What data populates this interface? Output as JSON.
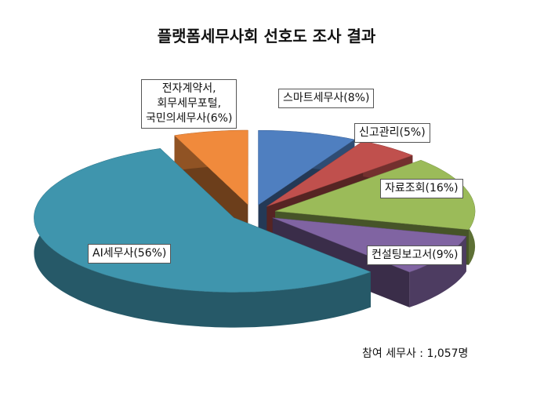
{
  "chart_data": {
    "type": "pie3d",
    "title": "플랫폼세무사회 선호도 조사 결과",
    "categories": [
      "스마트세무사(8%)",
      "신고관리(5%)",
      "자료조회(16%)",
      "컨설팅보고서(9%)",
      "AI세무사(56%)",
      "전자계약서,\n회무세무포털,\n국민의세무사(6%)"
    ],
    "values": [
      8,
      5,
      16,
      9,
      56,
      6
    ],
    "colors": [
      "#4f7fc0",
      "#c0504d",
      "#9bbb59",
      "#8064a2",
      "#3f95ad",
      "#f08a3c"
    ],
    "annotation": "참여 세무사 : 1,057명"
  }
}
